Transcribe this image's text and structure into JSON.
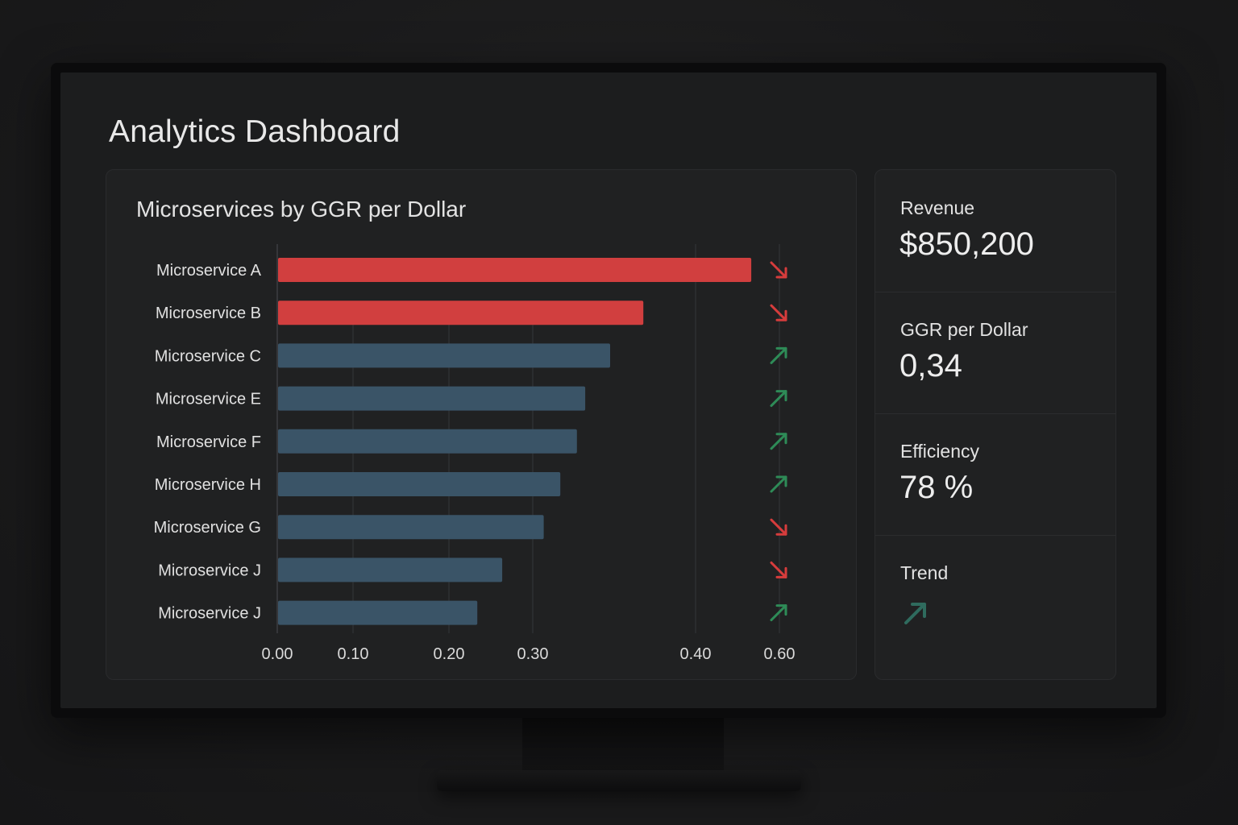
{
  "dashboard": {
    "title": "Analytics Dashboard"
  },
  "kpis": [
    {
      "label": "Revenue",
      "value": "$850,200"
    },
    {
      "label": "GGR per Dollar",
      "value": "0,34"
    },
    {
      "label": "Efficiency",
      "value": "78 %"
    },
    {
      "label": "Trend",
      "value": "",
      "icon": "trend-up-arrow-icon",
      "color": "#2f6b5e"
    }
  ],
  "colors": {
    "negative_bar": "#d13f3f",
    "neutral_bar": "#3a5467",
    "up_arrow": "#2e8b57",
    "down_arrow": "#d63c3c"
  },
  "chart_data": {
    "type": "bar",
    "orientation": "horizontal",
    "title": "Microservices by GGR per Dollar",
    "categories": [
      "Microservice A",
      "Microservice B",
      "Microservice C",
      "Microservice E",
      "Microservice F",
      "Microservice H",
      "Microservice G",
      "Microservice J",
      "Microservice J"
    ],
    "values": [
      0.57,
      0.44,
      0.4,
      0.37,
      0.36,
      0.34,
      0.32,
      0.27,
      0.24
    ],
    "bar_status": [
      "negative",
      "negative",
      "neutral",
      "neutral",
      "neutral",
      "neutral",
      "neutral",
      "neutral",
      "neutral"
    ],
    "trends": [
      "down",
      "down",
      "up",
      "up",
      "up",
      "up",
      "down",
      "down",
      "up"
    ],
    "xticks": [
      "0.00",
      "0.10",
      "0.20",
      "0.30",
      "0.40",
      "0.60"
    ],
    "xlabel": "",
    "ylabel": "",
    "grid": true
  }
}
